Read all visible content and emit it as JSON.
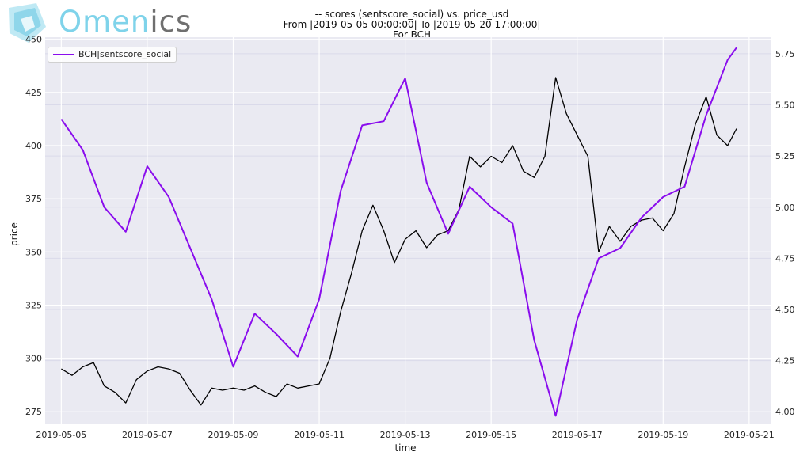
{
  "logo": {
    "text_main": "Omen",
    "text_suffix": "ics"
  },
  "chart_data": {
    "type": "line",
    "title_lines": [
      "-- scores (sentscore_social) vs. price_usd",
      "From |2019-05-05 00:00:00| To |2019-05-20 17:00:00|",
      "For BCH"
    ],
    "xlabel": "time",
    "ylabel": "price",
    "x_ticks": [
      "2019-05-05",
      "2019-05-07",
      "2019-05-09",
      "2019-05-11",
      "2019-05-13",
      "2019-05-15",
      "2019-05-17",
      "2019-05-19",
      "2019-05-21"
    ],
    "y_ticks_left": [
      275,
      300,
      325,
      350,
      375,
      400,
      425,
      450
    ],
    "y_ticks_right": [
      "4.00",
      "4.25",
      "4.50",
      "4.75",
      "5.00",
      "5.25",
      "5.50",
      "5.75"
    ],
    "ylim_left": [
      269,
      451
    ],
    "ylim_right": [
      3.939,
      5.831
    ],
    "xlim": [
      "2019-05-04T15:00",
      "2019-05-21T12:00"
    ],
    "grid": true,
    "legend_position": "top-left",
    "series": [
      {
        "name": "price_usd",
        "axis": "left",
        "color": "#000000",
        "x": [
          "2019-05-05T00:00",
          "2019-05-05T06:00",
          "2019-05-05T12:00",
          "2019-05-05T18:00",
          "2019-05-06T00:00",
          "2019-05-06T06:00",
          "2019-05-06T12:00",
          "2019-05-06T18:00",
          "2019-05-07T00:00",
          "2019-05-07T06:00",
          "2019-05-07T12:00",
          "2019-05-07T18:00",
          "2019-05-08T00:00",
          "2019-05-08T06:00",
          "2019-05-08T12:00",
          "2019-05-08T18:00",
          "2019-05-09T00:00",
          "2019-05-09T06:00",
          "2019-05-09T12:00",
          "2019-05-09T18:00",
          "2019-05-10T00:00",
          "2019-05-10T06:00",
          "2019-05-10T12:00",
          "2019-05-10T18:00",
          "2019-05-11T00:00",
          "2019-05-11T06:00",
          "2019-05-11T12:00",
          "2019-05-11T18:00",
          "2019-05-12T00:00",
          "2019-05-12T06:00",
          "2019-05-12T12:00",
          "2019-05-12T18:00",
          "2019-05-13T00:00",
          "2019-05-13T06:00",
          "2019-05-13T12:00",
          "2019-05-13T18:00",
          "2019-05-14T00:00",
          "2019-05-14T06:00",
          "2019-05-14T12:00",
          "2019-05-14T18:00",
          "2019-05-15T00:00",
          "2019-05-15T06:00",
          "2019-05-15T12:00",
          "2019-05-15T18:00",
          "2019-05-16T00:00",
          "2019-05-16T06:00",
          "2019-05-16T12:00",
          "2019-05-16T18:00",
          "2019-05-17T00:00",
          "2019-05-17T06:00",
          "2019-05-17T12:00",
          "2019-05-17T18:00",
          "2019-05-18T00:00",
          "2019-05-18T06:00",
          "2019-05-18T12:00",
          "2019-05-18T18:00",
          "2019-05-19T00:00",
          "2019-05-19T06:00",
          "2019-05-19T12:00",
          "2019-05-19T18:00",
          "2019-05-20T00:00",
          "2019-05-20T06:00",
          "2019-05-20T12:00",
          "2019-05-20T17:00"
        ],
        "y": [
          295,
          292,
          296,
          298,
          287,
          284,
          279,
          290,
          294,
          296,
          295,
          293,
          285,
          278,
          286,
          285,
          286,
          285,
          287,
          284,
          282,
          288,
          286,
          287,
          288,
          300,
          322,
          340,
          360,
          372,
          360,
          345,
          356,
          360,
          352,
          358,
          360,
          370,
          395,
          390,
          395,
          392,
          400,
          388,
          385,
          395,
          432,
          415,
          405,
          395,
          350,
          362,
          355,
          362,
          365,
          366,
          360,
          368,
          390,
          410,
          423,
          405,
          400,
          408
        ]
      },
      {
        "name": "BCH|sentscore_social",
        "axis": "right",
        "color": "#8a0ded",
        "x": [
          "2019-05-05T00:00",
          "2019-05-05T12:00",
          "2019-05-06T00:00",
          "2019-05-06T12:00",
          "2019-05-07T00:00",
          "2019-05-07T12:00",
          "2019-05-08T00:00",
          "2019-05-08T12:00",
          "2019-05-09T00:00",
          "2019-05-09T12:00",
          "2019-05-10T00:00",
          "2019-05-10T12:00",
          "2019-05-11T00:00",
          "2019-05-11T12:00",
          "2019-05-12T00:00",
          "2019-05-12T12:00",
          "2019-05-13T00:00",
          "2019-05-13T12:00",
          "2019-05-14T00:00",
          "2019-05-14T12:00",
          "2019-05-15T00:00",
          "2019-05-15T12:00",
          "2019-05-16T00:00",
          "2019-05-16T12:00",
          "2019-05-17T00:00",
          "2019-05-17T12:00",
          "2019-05-18T00:00",
          "2019-05-18T12:00",
          "2019-05-19T00:00",
          "2019-05-19T12:00",
          "2019-05-20T00:00",
          "2019-05-20T12:00",
          "2019-05-20T17:00"
        ],
        "y": [
          5.43,
          5.28,
          5.0,
          4.88,
          5.2,
          5.05,
          4.8,
          4.55,
          4.22,
          4.48,
          4.38,
          4.27,
          4.55,
          5.08,
          5.4,
          5.42,
          5.63,
          5.12,
          4.87,
          5.1,
          5.0,
          4.92,
          4.35,
          3.98,
          4.45,
          4.75,
          4.8,
          4.95,
          5.05,
          5.1,
          5.45,
          5.72,
          5.78
        ]
      }
    ]
  }
}
